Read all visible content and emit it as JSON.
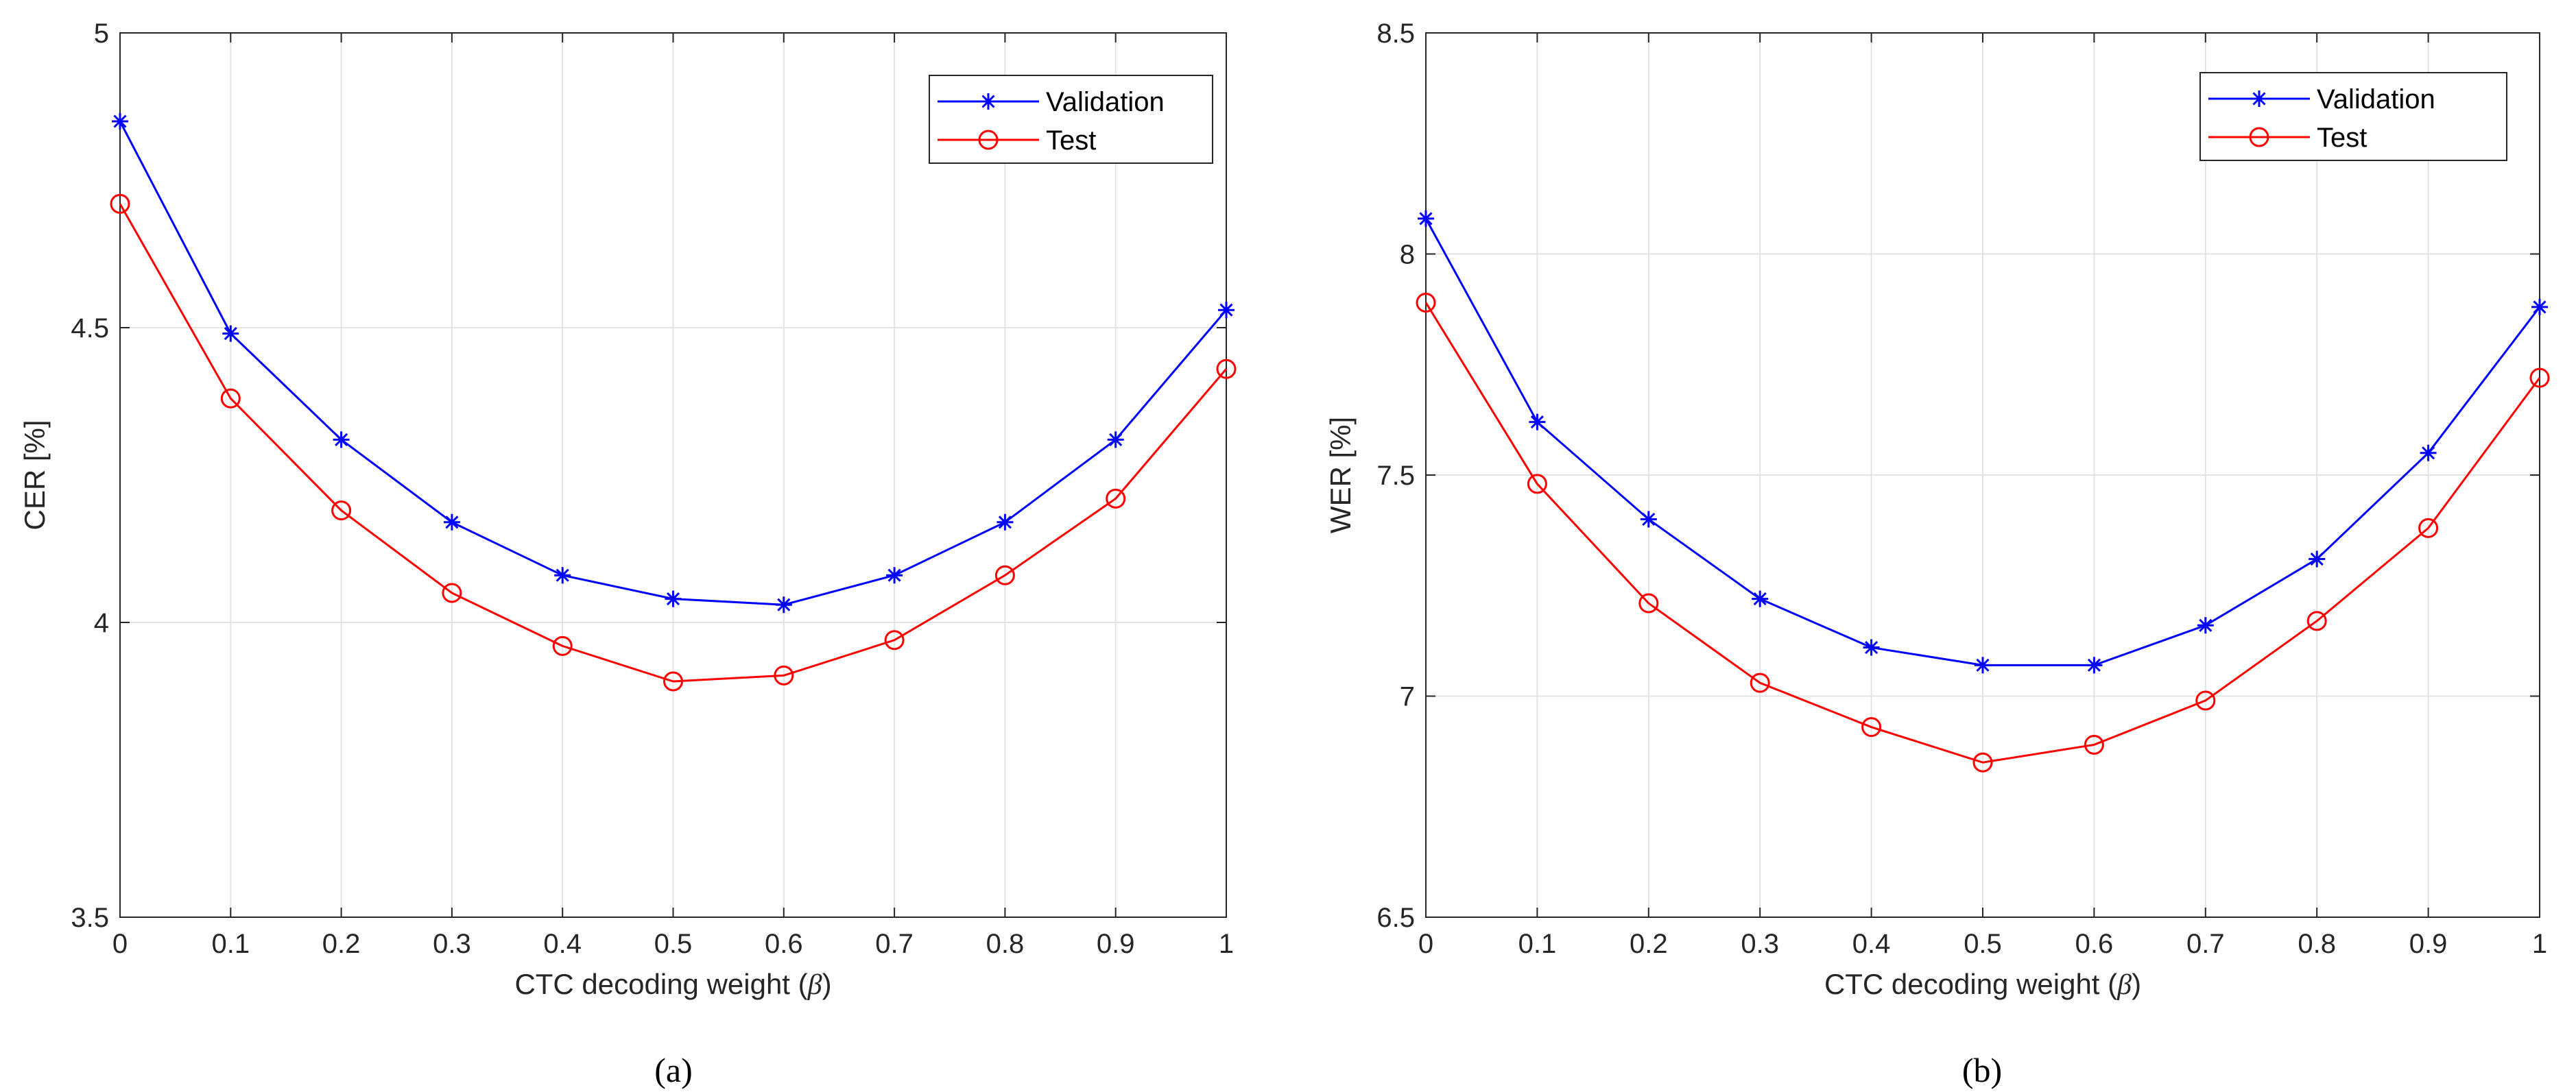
{
  "chart_data": [
    {
      "type": "line",
      "panel_label": "(a)",
      "xlabel_text": "CTC decoding weight (",
      "xlabel_symbol": "β",
      "xlabel_close": ")",
      "ylabel": "CER [%]",
      "x": [
        0,
        0.1,
        0.2,
        0.3,
        0.4,
        0.5,
        0.6,
        0.7,
        0.8,
        0.9,
        1
      ],
      "x_tick_labels": [
        "0",
        "0.1",
        "0.2",
        "0.3",
        "0.4",
        "0.5",
        "0.6",
        "0.7",
        "0.8",
        "0.9",
        "1"
      ],
      "xlim": [
        0,
        1
      ],
      "ylim": [
        3.5,
        5
      ],
      "y_ticks": [
        3.5,
        4,
        4.5,
        5
      ],
      "y_tick_labels": [
        "3.5",
        "4",
        "4.5",
        "5"
      ],
      "grid": true,
      "legend_position": "top-right",
      "series": [
        {
          "name": "Validation",
          "color": "#0000ff",
          "marker": "asterisk",
          "values": [
            4.85,
            4.49,
            4.31,
            4.17,
            4.08,
            4.04,
            4.03,
            4.08,
            4.17,
            4.31,
            4.53
          ]
        },
        {
          "name": "Test",
          "color": "#ff0000",
          "marker": "circle",
          "values": [
            4.71,
            4.38,
            4.19,
            4.05,
            3.96,
            3.9,
            3.91,
            3.97,
            4.08,
            4.21,
            4.43
          ]
        }
      ]
    },
    {
      "type": "line",
      "panel_label": "(b)",
      "xlabel_text": "CTC decoding weight (",
      "xlabel_symbol": "β",
      "xlabel_close": ")",
      "ylabel": "WER [%]",
      "x": [
        0,
        0.1,
        0.2,
        0.3,
        0.4,
        0.5,
        0.6,
        0.7,
        0.8,
        0.9,
        1
      ],
      "x_tick_labels": [
        "0",
        "0.1",
        "0.2",
        "0.3",
        "0.4",
        "0.5",
        "0.6",
        "0.7",
        "0.8",
        "0.9",
        "1"
      ],
      "xlim": [
        0,
        1
      ],
      "ylim": [
        6.5,
        8.5
      ],
      "y_ticks": [
        6.5,
        7,
        7.5,
        8,
        8.5
      ],
      "y_tick_labels": [
        "6.5",
        "7",
        "7.5",
        "8",
        "8.5"
      ],
      "grid": true,
      "legend_position": "top-right",
      "series": [
        {
          "name": "Validation",
          "color": "#0000ff",
          "marker": "asterisk",
          "values": [
            8.08,
            7.62,
            7.4,
            7.22,
            7.11,
            7.07,
            7.07,
            7.16,
            7.31,
            7.55,
            7.88
          ]
        },
        {
          "name": "Test",
          "color": "#ff0000",
          "marker": "circle",
          "values": [
            7.89,
            7.48,
            7.21,
            7.03,
            6.93,
            6.85,
            6.89,
            6.99,
            7.17,
            7.38,
            7.72
          ]
        }
      ]
    }
  ]
}
